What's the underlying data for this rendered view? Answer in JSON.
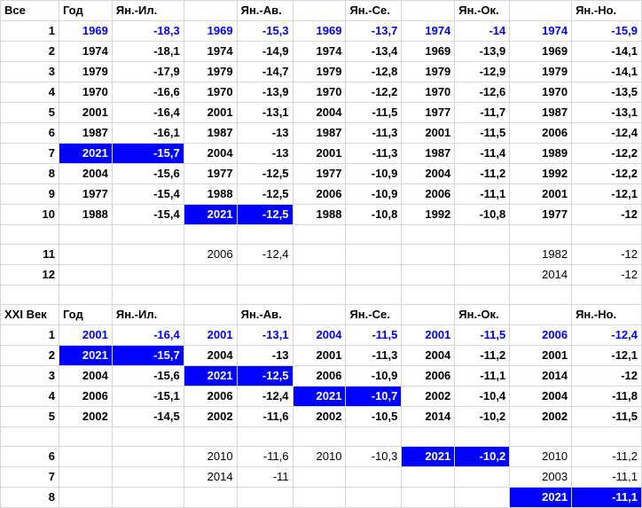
{
  "sheet": {
    "colors": {
      "highlight_fill": "#0000ff",
      "highlight_text": "#ffffff",
      "blue_text": "#0000ff",
      "grid": "#d6d6d6"
    },
    "rows": [
      [
        {
          "v": "Все",
          "s": "b l"
        },
        {
          "v": "Год",
          "s": "b l"
        },
        {
          "v": "Ян.-Ил.",
          "s": "b l"
        },
        {
          "v": "",
          "s": ""
        },
        {
          "v": "Ян.-Ав.",
          "s": "b l"
        },
        {
          "v": "",
          "s": ""
        },
        {
          "v": "Ян.-Се.",
          "s": "b l"
        },
        {
          "v": "",
          "s": ""
        },
        {
          "v": "Ян.-Ок.",
          "s": "b l"
        },
        {
          "v": "",
          "s": ""
        },
        {
          "v": "Ян.-Но.",
          "s": "b l"
        }
      ],
      [
        {
          "v": "1",
          "s": "b"
        },
        {
          "v": "1969",
          "s": "blue"
        },
        {
          "v": "-18,3",
          "s": "blue"
        },
        {
          "v": "1969",
          "s": "blue"
        },
        {
          "v": "-15,3",
          "s": "blue"
        },
        {
          "v": "1969",
          "s": "blue"
        },
        {
          "v": "-13,7",
          "s": "blue"
        },
        {
          "v": "1974",
          "s": "blue"
        },
        {
          "v": "-14",
          "s": "blue"
        },
        {
          "v": "1974",
          "s": "blue"
        },
        {
          "v": "-15,9",
          "s": "blue"
        }
      ],
      [
        {
          "v": "2",
          "s": "b"
        },
        {
          "v": "1974",
          "s": "b"
        },
        {
          "v": "-18,1",
          "s": "b"
        },
        {
          "v": "1974",
          "s": "b"
        },
        {
          "v": "-14,9",
          "s": "b"
        },
        {
          "v": "1974",
          "s": "b"
        },
        {
          "v": "-13,4",
          "s": "b"
        },
        {
          "v": "1969",
          "s": "b"
        },
        {
          "v": "-13,9",
          "s": "b"
        },
        {
          "v": "1969",
          "s": "b"
        },
        {
          "v": "-14,1",
          "s": "b"
        }
      ],
      [
        {
          "v": "3",
          "s": "b"
        },
        {
          "v": "1979",
          "s": "b"
        },
        {
          "v": "-17,9",
          "s": "b"
        },
        {
          "v": "1979",
          "s": "b"
        },
        {
          "v": "-14,7",
          "s": "b"
        },
        {
          "v": "1979",
          "s": "b"
        },
        {
          "v": "-12,8",
          "s": "b"
        },
        {
          "v": "1979",
          "s": "b"
        },
        {
          "v": "-12,9",
          "s": "b"
        },
        {
          "v": "1979",
          "s": "b"
        },
        {
          "v": "-14,1",
          "s": "b"
        }
      ],
      [
        {
          "v": "4",
          "s": "b"
        },
        {
          "v": "1970",
          "s": "b"
        },
        {
          "v": "-16,6",
          "s": "b"
        },
        {
          "v": "1970",
          "s": "b"
        },
        {
          "v": "-13,9",
          "s": "b"
        },
        {
          "v": "1970",
          "s": "b"
        },
        {
          "v": "-12,2",
          "s": "b"
        },
        {
          "v": "1970",
          "s": "b"
        },
        {
          "v": "-12,6",
          "s": "b"
        },
        {
          "v": "1970",
          "s": "b"
        },
        {
          "v": "-13,5",
          "s": "b"
        }
      ],
      [
        {
          "v": "5",
          "s": "b"
        },
        {
          "v": "2001",
          "s": "b"
        },
        {
          "v": "-16,4",
          "s": "b"
        },
        {
          "v": "2001",
          "s": "b"
        },
        {
          "v": "-13,1",
          "s": "b"
        },
        {
          "v": "2004",
          "s": "b"
        },
        {
          "v": "-11,5",
          "s": "b"
        },
        {
          "v": "1977",
          "s": "b"
        },
        {
          "v": "-11,7",
          "s": "b"
        },
        {
          "v": "1987",
          "s": "b"
        },
        {
          "v": "-13,1",
          "s": "b"
        }
      ],
      [
        {
          "v": "6",
          "s": "b"
        },
        {
          "v": "1987",
          "s": "b"
        },
        {
          "v": "-16,1",
          "s": "b"
        },
        {
          "v": "1987",
          "s": "b"
        },
        {
          "v": "-13",
          "s": "b"
        },
        {
          "v": "1987",
          "s": "b"
        },
        {
          "v": "-11,3",
          "s": "b"
        },
        {
          "v": "2001",
          "s": "b"
        },
        {
          "v": "-11,5",
          "s": "b"
        },
        {
          "v": "2006",
          "s": "b"
        },
        {
          "v": "-12,4",
          "s": "b"
        }
      ],
      [
        {
          "v": "7",
          "s": "b"
        },
        {
          "v": "2021",
          "s": "hl"
        },
        {
          "v": "-15,7",
          "s": "hl"
        },
        {
          "v": "2004",
          "s": "b"
        },
        {
          "v": "-13",
          "s": "b"
        },
        {
          "v": "2001",
          "s": "b"
        },
        {
          "v": "-11,3",
          "s": "b"
        },
        {
          "v": "1987",
          "s": "b"
        },
        {
          "v": "-11,4",
          "s": "b"
        },
        {
          "v": "1989",
          "s": "b"
        },
        {
          "v": "-12,2",
          "s": "b"
        }
      ],
      [
        {
          "v": "8",
          "s": "b"
        },
        {
          "v": "2004",
          "s": "b"
        },
        {
          "v": "-15,6",
          "s": "b"
        },
        {
          "v": "1977",
          "s": "b"
        },
        {
          "v": "-12,5",
          "s": "b"
        },
        {
          "v": "1977",
          "s": "b"
        },
        {
          "v": "-10,9",
          "s": "b"
        },
        {
          "v": "2004",
          "s": "b"
        },
        {
          "v": "-11,2",
          "s": "b"
        },
        {
          "v": "1992",
          "s": "b"
        },
        {
          "v": "-12,2",
          "s": "b"
        }
      ],
      [
        {
          "v": "9",
          "s": "b"
        },
        {
          "v": "1977",
          "s": "b"
        },
        {
          "v": "-15,4",
          "s": "b"
        },
        {
          "v": "1988",
          "s": "b"
        },
        {
          "v": "-12,5",
          "s": "b"
        },
        {
          "v": "2006",
          "s": "b"
        },
        {
          "v": "-10,9",
          "s": "b"
        },
        {
          "v": "2006",
          "s": "b"
        },
        {
          "v": "-11,1",
          "s": "b"
        },
        {
          "v": "2001",
          "s": "b"
        },
        {
          "v": "-12,1",
          "s": "b"
        }
      ],
      [
        {
          "v": "10",
          "s": "b"
        },
        {
          "v": "1988",
          "s": "b"
        },
        {
          "v": "-15,4",
          "s": "b"
        },
        {
          "v": "2021",
          "s": "hl"
        },
        {
          "v": "-12,5",
          "s": "hl"
        },
        {
          "v": "1988",
          "s": "b"
        },
        {
          "v": "-10,8",
          "s": "b"
        },
        {
          "v": "1992",
          "s": "b"
        },
        {
          "v": "-10,8",
          "s": "b"
        },
        {
          "v": "1977",
          "s": "b"
        },
        {
          "v": "-12",
          "s": "b"
        }
      ],
      [
        {
          "v": "",
          "s": ""
        },
        {
          "v": "",
          "s": ""
        },
        {
          "v": "",
          "s": ""
        },
        {
          "v": "",
          "s": ""
        },
        {
          "v": "",
          "s": ""
        },
        {
          "v": "",
          "s": ""
        },
        {
          "v": "",
          "s": ""
        },
        {
          "v": "",
          "s": ""
        },
        {
          "v": "",
          "s": ""
        },
        {
          "v": "",
          "s": ""
        },
        {
          "v": "",
          "s": ""
        }
      ],
      [
        {
          "v": "11",
          "s": "b"
        },
        {
          "v": "",
          "s": ""
        },
        {
          "v": "",
          "s": ""
        },
        {
          "v": "2006",
          "s": "n"
        },
        {
          "v": "-12,4",
          "s": "n"
        },
        {
          "v": "",
          "s": ""
        },
        {
          "v": "",
          "s": ""
        },
        {
          "v": "",
          "s": ""
        },
        {
          "v": "",
          "s": ""
        },
        {
          "v": "1982",
          "s": "n"
        },
        {
          "v": "-12",
          "s": "n"
        }
      ],
      [
        {
          "v": "12",
          "s": "b"
        },
        {
          "v": "",
          "s": ""
        },
        {
          "v": "",
          "s": ""
        },
        {
          "v": "",
          "s": ""
        },
        {
          "v": "",
          "s": ""
        },
        {
          "v": "",
          "s": ""
        },
        {
          "v": "",
          "s": ""
        },
        {
          "v": "",
          "s": ""
        },
        {
          "v": "",
          "s": ""
        },
        {
          "v": "2014",
          "s": "n"
        },
        {
          "v": "-12",
          "s": "n"
        }
      ],
      [
        {
          "v": "",
          "s": ""
        },
        {
          "v": "",
          "s": ""
        },
        {
          "v": "",
          "s": ""
        },
        {
          "v": "",
          "s": ""
        },
        {
          "v": "",
          "s": ""
        },
        {
          "v": "",
          "s": ""
        },
        {
          "v": "",
          "s": ""
        },
        {
          "v": "",
          "s": ""
        },
        {
          "v": "",
          "s": ""
        },
        {
          "v": "",
          "s": ""
        },
        {
          "v": "",
          "s": ""
        }
      ],
      [
        {
          "v": "XXI Век",
          "s": "b l"
        },
        {
          "v": "Год",
          "s": "b l"
        },
        {
          "v": "Ян.-Ил.",
          "s": "b l"
        },
        {
          "v": "",
          "s": ""
        },
        {
          "v": "Ян.-Ав.",
          "s": "b l"
        },
        {
          "v": "",
          "s": ""
        },
        {
          "v": "Ян.-Се.",
          "s": "b l"
        },
        {
          "v": "",
          "s": ""
        },
        {
          "v": "Ян.-Ок.",
          "s": "b l"
        },
        {
          "v": "",
          "s": ""
        },
        {
          "v": "Ян.-Но.",
          "s": "b l"
        }
      ],
      [
        {
          "v": "1",
          "s": "b"
        },
        {
          "v": "2001",
          "s": "blue"
        },
        {
          "v": "-16,4",
          "s": "blue"
        },
        {
          "v": "2001",
          "s": "blue"
        },
        {
          "v": "-13,1",
          "s": "blue"
        },
        {
          "v": "2004",
          "s": "blue"
        },
        {
          "v": "-11,5",
          "s": "blue"
        },
        {
          "v": "2001",
          "s": "blue"
        },
        {
          "v": "-11,5",
          "s": "blue"
        },
        {
          "v": "2006",
          "s": "blue"
        },
        {
          "v": "-12,4",
          "s": "blue"
        }
      ],
      [
        {
          "v": "2",
          "s": "b"
        },
        {
          "v": "2021",
          "s": "hl"
        },
        {
          "v": "-15,7",
          "s": "hl"
        },
        {
          "v": "2004",
          "s": "b"
        },
        {
          "v": "-13",
          "s": "b"
        },
        {
          "v": "2001",
          "s": "b"
        },
        {
          "v": "-11,3",
          "s": "b"
        },
        {
          "v": "2004",
          "s": "b"
        },
        {
          "v": "-11,2",
          "s": "b"
        },
        {
          "v": "2001",
          "s": "b"
        },
        {
          "v": "-12,1",
          "s": "b"
        }
      ],
      [
        {
          "v": "3",
          "s": "b"
        },
        {
          "v": "2004",
          "s": "b"
        },
        {
          "v": "-15,6",
          "s": "b"
        },
        {
          "v": "2021",
          "s": "hl"
        },
        {
          "v": "-12,5",
          "s": "hl"
        },
        {
          "v": "2006",
          "s": "b"
        },
        {
          "v": "-10,9",
          "s": "b"
        },
        {
          "v": "2006",
          "s": "b"
        },
        {
          "v": "-11,1",
          "s": "b"
        },
        {
          "v": "2014",
          "s": "b"
        },
        {
          "v": "-12",
          "s": "b"
        }
      ],
      [
        {
          "v": "4",
          "s": "b"
        },
        {
          "v": "2006",
          "s": "b"
        },
        {
          "v": "-15,1",
          "s": "b"
        },
        {
          "v": "2006",
          "s": "b"
        },
        {
          "v": "-12,4",
          "s": "b"
        },
        {
          "v": "2021",
          "s": "hl"
        },
        {
          "v": "-10,7",
          "s": "hl"
        },
        {
          "v": "2002",
          "s": "b"
        },
        {
          "v": "-10,4",
          "s": "b"
        },
        {
          "v": "2004",
          "s": "b"
        },
        {
          "v": "-11,8",
          "s": "b"
        }
      ],
      [
        {
          "v": "5",
          "s": "b"
        },
        {
          "v": "2002",
          "s": "b"
        },
        {
          "v": "-14,5",
          "s": "b"
        },
        {
          "v": "2002",
          "s": "b"
        },
        {
          "v": "-11,6",
          "s": "b"
        },
        {
          "v": "2002",
          "s": "b"
        },
        {
          "v": "-10,5",
          "s": "b"
        },
        {
          "v": "2014",
          "s": "b"
        },
        {
          "v": "-10,2",
          "s": "b"
        },
        {
          "v": "2002",
          "s": "b"
        },
        {
          "v": "-11,5",
          "s": "b"
        }
      ],
      [
        {
          "v": "",
          "s": ""
        },
        {
          "v": "",
          "s": ""
        },
        {
          "v": "",
          "s": ""
        },
        {
          "v": "",
          "s": ""
        },
        {
          "v": "",
          "s": ""
        },
        {
          "v": "",
          "s": ""
        },
        {
          "v": "",
          "s": ""
        },
        {
          "v": "",
          "s": ""
        },
        {
          "v": "",
          "s": ""
        },
        {
          "v": "",
          "s": ""
        },
        {
          "v": "",
          "s": ""
        }
      ],
      [
        {
          "v": "6",
          "s": "b"
        },
        {
          "v": "",
          "s": ""
        },
        {
          "v": "",
          "s": ""
        },
        {
          "v": "2010",
          "s": "n"
        },
        {
          "v": "-11,6",
          "s": "n"
        },
        {
          "v": "2010",
          "s": "n"
        },
        {
          "v": "-10,3",
          "s": "n"
        },
        {
          "v": "2021",
          "s": "hl"
        },
        {
          "v": "-10,2",
          "s": "hl"
        },
        {
          "v": "2010",
          "s": "n"
        },
        {
          "v": "-11,2",
          "s": "n"
        }
      ],
      [
        {
          "v": "7",
          "s": "b"
        },
        {
          "v": "",
          "s": ""
        },
        {
          "v": "",
          "s": ""
        },
        {
          "v": "2014",
          "s": "n"
        },
        {
          "v": "-11",
          "s": "n"
        },
        {
          "v": "",
          "s": ""
        },
        {
          "v": "",
          "s": ""
        },
        {
          "v": "",
          "s": ""
        },
        {
          "v": "",
          "s": ""
        },
        {
          "v": "2003",
          "s": "n"
        },
        {
          "v": "-11,1",
          "s": "n"
        }
      ],
      [
        {
          "v": "8",
          "s": "b"
        },
        {
          "v": "",
          "s": ""
        },
        {
          "v": "",
          "s": ""
        },
        {
          "v": "",
          "s": ""
        },
        {
          "v": "",
          "s": ""
        },
        {
          "v": "",
          "s": ""
        },
        {
          "v": "",
          "s": ""
        },
        {
          "v": "",
          "s": ""
        },
        {
          "v": "",
          "s": ""
        },
        {
          "v": "2021",
          "s": "hl"
        },
        {
          "v": "-11,1",
          "s": "hl"
        }
      ]
    ]
  }
}
